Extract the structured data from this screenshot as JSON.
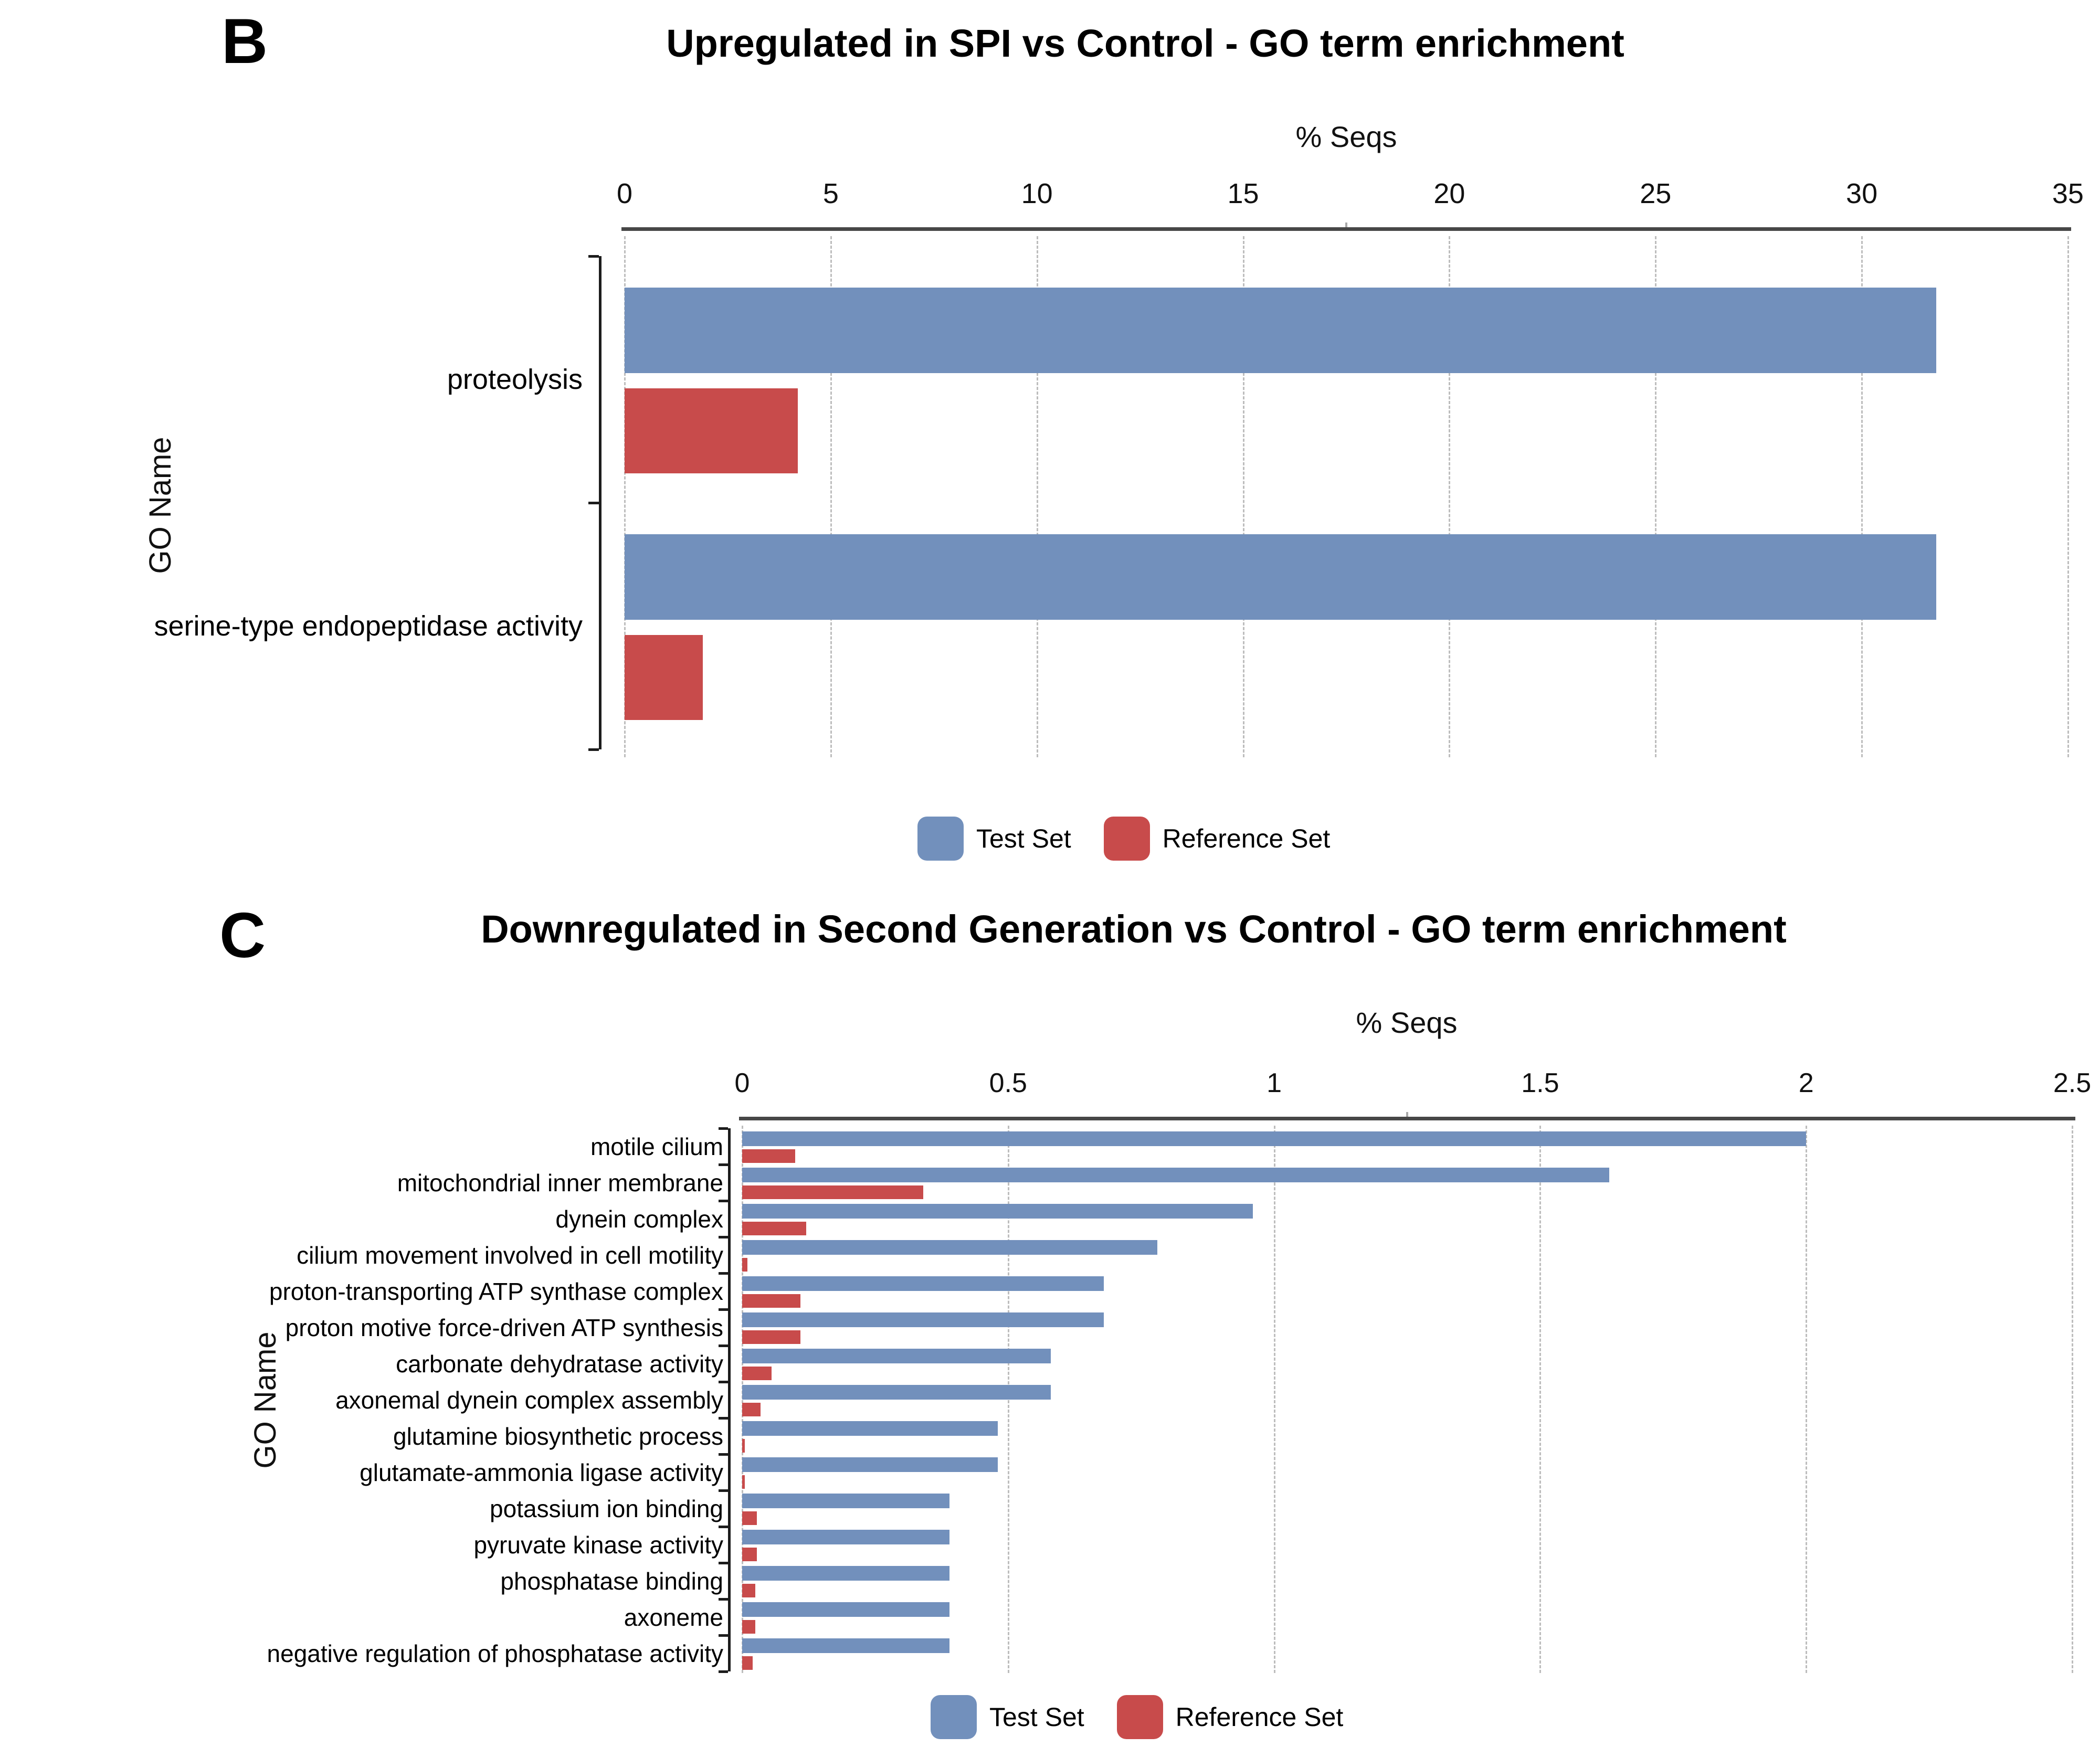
{
  "chart_data": [
    {
      "type": "bar",
      "orientation": "horizontal",
      "panel_label": "B",
      "title": "Upregulated in SPI vs Control - GO term enrichment",
      "xlabel": "% Seqs",
      "ylabel": "GO Name",
      "xlim": [
        0,
        35
      ],
      "x_ticks": [
        "0",
        "5",
        "10",
        "15",
        "20",
        "25",
        "30",
        "35"
      ],
      "grid": "vertical-dashed",
      "legend_position": "bottom-center",
      "categories": [
        "proteolysis",
        "serine-type endopeptidase activity"
      ],
      "series": [
        {
          "name": "Test Set",
          "color": "#7290BC",
          "values": [
            31.8,
            31.8
          ]
        },
        {
          "name": "Reference Set",
          "color": "#C84B4B",
          "values": [
            4.2,
            1.9
          ]
        }
      ]
    },
    {
      "type": "bar",
      "orientation": "horizontal",
      "panel_label": "C",
      "title": "Downregulated in Second Generation vs Control - GO term enrichment",
      "xlabel": "% Seqs",
      "ylabel": "GO Name",
      "xlim": [
        0,
        2.5
      ],
      "x_ticks": [
        "0",
        "0.5",
        "1",
        "1.5",
        "2",
        "2.5"
      ],
      "grid": "vertical-dashed",
      "legend_position": "bottom-center",
      "categories": [
        "motile cilium",
        "mitochondrial inner membrane",
        "dynein complex",
        "cilium movement involved in cell motility",
        "proton-transporting ATP synthase complex",
        "proton motive force-driven ATP synthesis",
        "carbonate dehydratase activity",
        "axonemal dynein complex assembly",
        "glutamine biosynthetic process",
        "glutamate-ammonia ligase activity",
        "potassium ion binding",
        "pyruvate kinase activity",
        "phosphatase binding",
        "axoneme",
        "negative regulation of phosphatase activity"
      ],
      "series": [
        {
          "name": "Test Set",
          "color": "#7290BC",
          "values": [
            2.0,
            1.63,
            0.96,
            0.78,
            0.68,
            0.68,
            0.58,
            0.58,
            0.48,
            0.48,
            0.39,
            0.39,
            0.39,
            0.39,
            0.39
          ]
        },
        {
          "name": "Reference Set",
          "color": "#C84B4B",
          "values": [
            0.1,
            0.34,
            0.12,
            0.01,
            0.11,
            0.11,
            0.055,
            0.035,
            0.005,
            0.005,
            0.028,
            0.028,
            0.025,
            0.025,
            0.02
          ]
        }
      ]
    }
  ],
  "legend": {
    "test_label": "Test Set",
    "reference_label": "Reference Set"
  },
  "colors": {
    "test": "#7290BC",
    "reference": "#C84B4B",
    "gridline": "#bdbdbd",
    "axis": "#474747"
  }
}
